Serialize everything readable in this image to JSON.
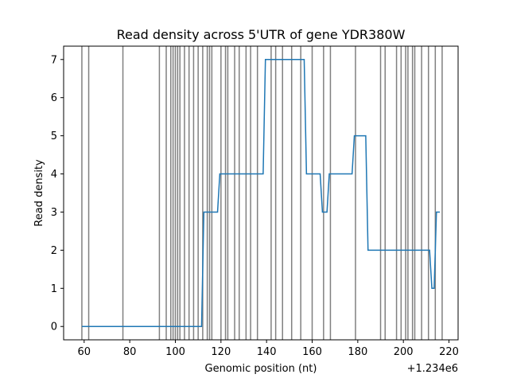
{
  "chart_data": {
    "type": "line",
    "title": "Read density across 5'UTR of gene YDR380W",
    "xlabel": "Genomic position (nt)",
    "ylabel": "Read density",
    "x_offset_label": "+1.234e6",
    "xlim": [
      51,
      224
    ],
    "ylim": [
      -0.35,
      7.35
    ],
    "x_ticks": [
      60,
      80,
      100,
      120,
      140,
      160,
      180,
      200,
      220
    ],
    "y_ticks": [
      0,
      1,
      2,
      3,
      4,
      5,
      6,
      7
    ],
    "grid": false,
    "colors": {
      "series": "#1f77b4",
      "vlines": "#808080"
    },
    "series": [
      {
        "x": [
          59,
          111.5,
          112.5,
          118.5,
          119.5,
          138.5,
          139.5,
          156.5,
          157.5,
          163.5,
          164.5,
          166.5,
          167.5,
          177.5,
          178.5,
          183.5,
          184.5,
          211.5,
          212.5,
          213.5,
          214.5,
          216
        ],
        "y": [
          0,
          0,
          3,
          3,
          4,
          4,
          7,
          7,
          4,
          4,
          3,
          3,
          4,
          4,
          5,
          5,
          2,
          2,
          1,
          1,
          3,
          3
        ]
      }
    ],
    "vlines": [
      59,
      62,
      77,
      93,
      96,
      98,
      99,
      100,
      101,
      102,
      104,
      106,
      108,
      110,
      112,
      114,
      115,
      116,
      120,
      122,
      123,
      126,
      128,
      131,
      133,
      136,
      142,
      144,
      147,
      151,
      155,
      160,
      165,
      168,
      179,
      190,
      192,
      197,
      199,
      201,
      202,
      204,
      205,
      208,
      211,
      214,
      217
    ]
  }
}
